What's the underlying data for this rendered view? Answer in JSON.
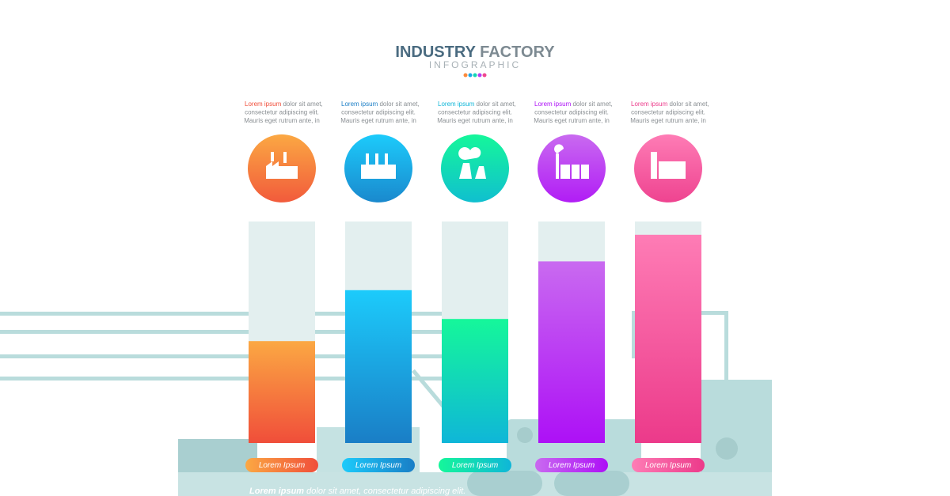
{
  "chart_data": {
    "type": "bar",
    "title_main": "INDUSTRY",
    "title_rest": "FACTORY",
    "subtitle": "INFOGRAPHIC",
    "categories": [
      "Lorem Ipsum",
      "Lorem Ipsum",
      "Lorem Ipsum",
      "Lorem Ipsum",
      "Lorem Ipsum"
    ],
    "values": [
      46,
      69,
      56,
      82,
      94
    ],
    "ylim": [
      0,
      100
    ],
    "colors": [
      [
        "#fba843",
        "#f04e3a"
      ],
      [
        "#1ccbfb",
        "#1a7ec6"
      ],
      [
        "#15f79a",
        "#0fb6d8"
      ],
      [
        "#c96af0",
        "#ad10f6"
      ],
      [
        "#fe7cb5",
        "#ec3a8a"
      ]
    ],
    "notes": [
      {
        "highlight": "Lorem ipsum",
        "lines": [
          "dolor sit amet,",
          "consectetur adipiscing elit.",
          "Mauris eget rutrum ante, in"
        ]
      },
      {
        "highlight": "Lorem ipsum",
        "lines": [
          "dolor sit amet,",
          "consectetur adipiscing elit.",
          "Mauris eget rutrum ante, in"
        ]
      },
      {
        "highlight": "Lorem ipsum",
        "lines": [
          "dolor sit amet,",
          "consectetur adipiscing elit.",
          "Mauris eget rutrum ante, in"
        ]
      },
      {
        "highlight": "Lorem ipsum",
        "lines": [
          "dolor sit amet,",
          "consectetur adipiscing elit.",
          "Mauris eget rutrum ante, in"
        ]
      },
      {
        "highlight": "Lorem ipsum",
        "lines": [
          "dolor sit amet,",
          "consectetur adipiscing elit.",
          "Mauris eget rutrum ante, in"
        ]
      }
    ],
    "footer_bold": "Lorem ipsum",
    "footer_text": "dolor sit amet, consectetur adipiscing elit."
  }
}
